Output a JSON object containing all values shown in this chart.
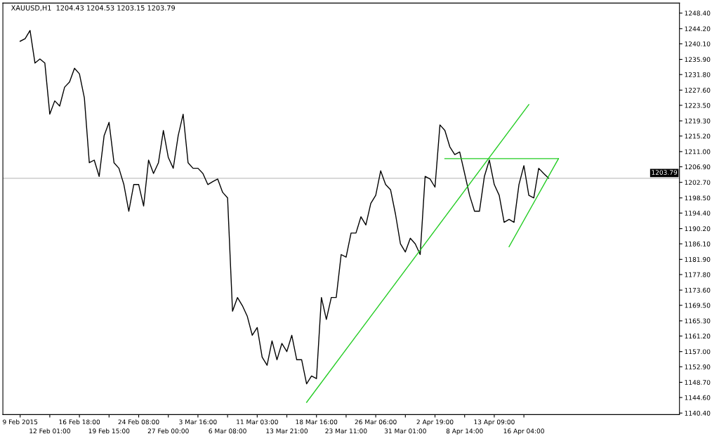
{
  "chart_data": {
    "type": "line",
    "title": "XAUUSD,H1  1204.43 1204.53 1203.15 1203.79",
    "categories": [
      "9 Feb 2015",
      null,
      null,
      null,
      null,
      null,
      "12 Feb 01:00",
      null,
      null,
      null,
      null,
      null,
      "16 Feb 18:00",
      null,
      null,
      null,
      null,
      null,
      "19 Feb 15:00",
      null,
      null,
      null,
      null,
      null,
      "24 Feb 08:00",
      null,
      null,
      null,
      null,
      null,
      "27 Feb 00:00",
      null,
      null,
      null,
      null,
      null,
      "3 Mar 16:00",
      null,
      null,
      null,
      null,
      null,
      "6 Mar 08:00",
      null,
      null,
      null,
      null,
      null,
      "11 Mar 03:00",
      null,
      null,
      null,
      null,
      null,
      "13 Mar 21:00",
      null,
      null,
      null,
      null,
      null,
      "18 Mar 16:00",
      null,
      null,
      null,
      null,
      null,
      "23 Mar 11:00",
      null,
      null,
      null,
      null,
      null,
      "26 Mar 06:00",
      null,
      null,
      null,
      null,
      null,
      "31 Mar 01:00",
      null,
      null,
      null,
      null,
      null,
      "2 Apr 19:00",
      null,
      null,
      null,
      null,
      null,
      "8 Apr 14:00",
      null,
      null,
      null,
      null,
      null,
      "13 Apr 09:00",
      null,
      null,
      null,
      null,
      null,
      "16 Apr 04:00",
      null,
      null,
      null,
      null,
      null,
      null,
      null,
      null,
      null,
      null,
      null,
      null,
      null,
      null,
      null,
      null,
      null,
      null,
      null,
      null,
      null,
      null,
      null,
      null,
      null,
      null,
      null,
      null,
      null,
      null,
      null
    ],
    "series": [
      {
        "color": "#000000",
        "values": [
          1240.8,
          1241.5,
          1243.7,
          1234.9,
          1236.0,
          1234.9,
          1221.1,
          1224.7,
          1223.3,
          1228.4,
          1229.8,
          1233.5,
          1232.0,
          1225.5,
          1208.0,
          1208.7,
          1204.3,
          1215.3,
          1218.9,
          1208.0,
          1206.5,
          1202.1,
          1194.9,
          1202.1,
          1202.1,
          1196.3,
          1208.7,
          1205.1,
          1208.0,
          1216.7,
          1209.4,
          1206.5,
          1215.3,
          1221.1,
          1208.0,
          1206.5,
          1206.5,
          1205.1,
          1202.1,
          1202.9,
          1203.6,
          1200.0,
          1198.5,
          1167.9,
          1171.6,
          1169.4,
          1166.5,
          1161.4,
          1163.5,
          1155.5,
          1153.3,
          1159.9,
          1154.8,
          1159.2,
          1157.0,
          1161.4,
          1154.8,
          1154.8,
          1148.3,
          1150.4,
          1149.7,
          1171.6,
          1165.7,
          1171.6,
          1171.6,
          1183.2,
          1182.5,
          1189.0,
          1189.0,
          1193.4,
          1191.2,
          1197.0,
          1199.2,
          1205.8,
          1202.1,
          1200.7,
          1194.1,
          1186.1,
          1183.9,
          1187.6,
          1186.1,
          1183.2,
          1204.3,
          1203.6,
          1201.4,
          1218.2,
          1216.7,
          1212.3,
          1210.2,
          1210.9,
          1205.1,
          1199.2,
          1194.9,
          1194.9,
          1204.3,
          1208.7,
          1202.1,
          1199.2,
          1191.9,
          1192.7,
          1191.9,
          1202.1,
          1207.2,
          1199.2,
          1198.5,
          1206.5,
          1205.1,
          1203.8,
          null,
          null,
          null,
          null,
          null,
          null,
          null,
          null,
          null,
          null,
          null,
          null,
          null,
          null,
          null,
          null,
          null,
          null,
          null,
          null,
          null,
          null,
          null,
          null,
          null,
          null
        ]
      },
      {
        "color": "#22cc22",
        "values": [
          null,
          null,
          null,
          null,
          null,
          null,
          null,
          null,
          null,
          null,
          null,
          null,
          null,
          null,
          null,
          null,
          null,
          null,
          null,
          null,
          null,
          null,
          null,
          null,
          null,
          null,
          null,
          null,
          null,
          null,
          null,
          null,
          null,
          null,
          null,
          null,
          null,
          null,
          null,
          null,
          null,
          null,
          null,
          null,
          null,
          null,
          null,
          null,
          null,
          null,
          null,
          null,
          null,
          null,
          null,
          null,
          null,
          null,
          1143.3,
          null,
          null,
          null,
          null,
          null,
          null,
          null,
          null,
          null,
          null,
          null,
          null,
          null,
          null,
          null,
          null,
          null,
          null,
          null,
          null,
          null,
          null,
          null,
          null,
          null,
          null,
          null,
          null,
          null,
          null,
          null,
          null,
          null,
          null,
          null,
          null,
          null,
          null,
          null,
          null,
          null,
          null,
          null,
          null,
          1223.7,
          null,
          null,
          null,
          null,
          null,
          null,
          null,
          null,
          null,
          null,
          null,
          null,
          null,
          null,
          null,
          null,
          null,
          null,
          null,
          null,
          null,
          null,
          null,
          null,
          null,
          null,
          null,
          null,
          null,
          null
        ]
      },
      {
        "color": "#22cc22",
        "values": [
          null,
          null,
          null,
          null,
          null,
          null,
          null,
          null,
          null,
          null,
          null,
          null,
          null,
          null,
          null,
          null,
          null,
          null,
          null,
          null,
          null,
          null,
          null,
          null,
          null,
          null,
          null,
          null,
          null,
          null,
          null,
          null,
          null,
          null,
          null,
          null,
          null,
          null,
          null,
          null,
          null,
          null,
          null,
          null,
          null,
          null,
          null,
          null,
          null,
          null,
          null,
          null,
          null,
          null,
          null,
          null,
          null,
          null,
          null,
          null,
          null,
          null,
          null,
          null,
          null,
          null,
          null,
          null,
          null,
          null,
          null,
          null,
          null,
          null,
          null,
          null,
          null,
          null,
          null,
          null,
          null,
          null,
          null,
          null,
          null,
          null,
          1209.1,
          null,
          null,
          null,
          null,
          null,
          null,
          null,
          null,
          null,
          null,
          null,
          null,
          null,
          null,
          null,
          null,
          null,
          null,
          null,
          null,
          null,
          null,
          1209.1,
          null,
          null,
          null,
          null,
          null,
          null,
          null,
          null,
          null,
          null,
          null,
          null,
          null,
          null,
          null,
          null,
          null,
          null,
          null,
          null,
          null,
          null,
          null,
          null
        ]
      },
      {
        "color": "#22cc22",
        "values": [
          null,
          null,
          null,
          null,
          null,
          null,
          null,
          null,
          null,
          null,
          null,
          null,
          null,
          null,
          null,
          null,
          null,
          null,
          null,
          null,
          null,
          null,
          null,
          null,
          null,
          null,
          null,
          null,
          null,
          null,
          null,
          null,
          null,
          null,
          null,
          null,
          null,
          null,
          null,
          null,
          null,
          null,
          null,
          null,
          null,
          null,
          null,
          null,
          null,
          null,
          null,
          null,
          null,
          null,
          null,
          null,
          null,
          null,
          null,
          null,
          null,
          null,
          null,
          null,
          null,
          null,
          null,
          null,
          null,
          null,
          null,
          null,
          null,
          null,
          null,
          null,
          null,
          null,
          null,
          null,
          null,
          null,
          null,
          null,
          null,
          null,
          null,
          null,
          null,
          null,
          null,
          null,
          null,
          null,
          null,
          null,
          null,
          null,
          null,
          1185.3,
          null,
          null,
          null,
          null,
          null,
          null,
          null,
          null,
          null,
          1209.1,
          null,
          null,
          null,
          null,
          null,
          null,
          null,
          null,
          null,
          null,
          null,
          null,
          null,
          null,
          null,
          null,
          null,
          null,
          null,
          null,
          null,
          null,
          null,
          null
        ]
      }
    ],
    "ylim": [
      1140.0,
      1251.1
    ],
    "yticks": [
      {
        "value": 1140.4,
        "label": "1140.40"
      },
      {
        "value": 1144.6,
        "label": "1144.60"
      },
      {
        "value": 1148.7,
        "label": "1148.70"
      },
      {
        "value": 1152.9,
        "label": "1152.90"
      },
      {
        "value": 1157.0,
        "label": "1157.00"
      },
      {
        "value": 1161.2,
        "label": "1161.20"
      },
      {
        "value": 1165.3,
        "label": "1165.30"
      },
      {
        "value": 1169.5,
        "label": "1169.50"
      },
      {
        "value": 1173.6,
        "label": "1173.60"
      },
      {
        "value": 1177.8,
        "label": "1177.80"
      },
      {
        "value": 1181.9,
        "label": "1181.90"
      },
      {
        "value": 1186.1,
        "label": "1186.10"
      },
      {
        "value": 1190.2,
        "label": "1190.20"
      },
      {
        "value": 1194.4,
        "label": "1194.40"
      },
      {
        "value": 1198.5,
        "label": "1198.50"
      },
      {
        "value": 1202.7,
        "label": "1202.70"
      },
      {
        "value": 1206.9,
        "label": "1206.90"
      },
      {
        "value": 1211.0,
        "label": "1211.00"
      },
      {
        "value": 1215.2,
        "label": "1215.20"
      },
      {
        "value": 1219.3,
        "label": "1219.30"
      },
      {
        "value": 1223.5,
        "label": "1223.50"
      },
      {
        "value": 1227.6,
        "label": "1227.60"
      },
      {
        "value": 1231.8,
        "label": "1231.80"
      },
      {
        "value": 1235.9,
        "label": "1235.90"
      },
      {
        "value": 1240.1,
        "label": "1240.10"
      },
      {
        "value": 1244.2,
        "label": "1244.20"
      },
      {
        "value": 1248.4,
        "label": "1248.40"
      }
    ],
    "ref_lines": [
      {
        "axis": "y",
        "value": 1203.79,
        "label": "1203.79",
        "color": "#c0c0c0"
      }
    ],
    "marker": "none",
    "line_style": "solid"
  }
}
